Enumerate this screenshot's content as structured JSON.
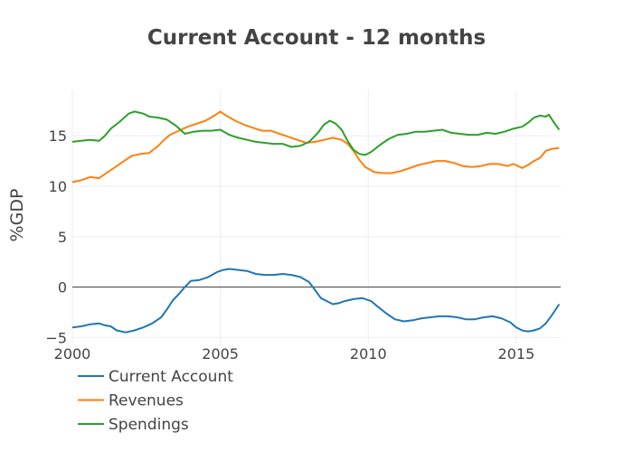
{
  "chart_data": {
    "type": "line",
    "title": "Current Account - 12 months",
    "xlabel": "",
    "ylabel": "%GDP",
    "xlim": [
      2000,
      2016.5
    ],
    "ylim": [
      -5.6,
      19.5
    ],
    "x_ticks": [
      "2000",
      "2005",
      "2010",
      "2015"
    ],
    "y_ticks": [
      "−5",
      "0",
      "5",
      "10",
      "15"
    ],
    "grid": true,
    "legend_position": "bottom-left",
    "series": [
      {
        "name": "Current Account",
        "color": "#1f77b4",
        "points": [
          [
            2000.0,
            -4.0
          ],
          [
            2000.3,
            -3.9
          ],
          [
            2000.6,
            -3.7
          ],
          [
            2000.9,
            -3.6
          ],
          [
            2001.1,
            -3.8
          ],
          [
            2001.3,
            -3.9
          ],
          [
            2001.5,
            -4.3
          ],
          [
            2001.8,
            -4.5
          ],
          [
            2002.1,
            -4.3
          ],
          [
            2002.4,
            -4.0
          ],
          [
            2002.7,
            -3.6
          ],
          [
            2003.0,
            -3.0
          ],
          [
            2003.2,
            -2.2
          ],
          [
            2003.4,
            -1.3
          ],
          [
            2003.6,
            -0.7
          ],
          [
            2003.8,
            0.0
          ],
          [
            2004.0,
            0.6
          ],
          [
            2004.3,
            0.7
          ],
          [
            2004.6,
            1.0
          ],
          [
            2004.9,
            1.5
          ],
          [
            2005.1,
            1.7
          ],
          [
            2005.3,
            1.8
          ],
          [
            2005.6,
            1.7
          ],
          [
            2005.9,
            1.6
          ],
          [
            2006.2,
            1.3
          ],
          [
            2006.5,
            1.2
          ],
          [
            2006.8,
            1.2
          ],
          [
            2007.1,
            1.3
          ],
          [
            2007.4,
            1.2
          ],
          [
            2007.7,
            1.0
          ],
          [
            2008.0,
            0.5
          ],
          [
            2008.2,
            -0.3
          ],
          [
            2008.4,
            -1.1
          ],
          [
            2008.6,
            -1.4
          ],
          [
            2008.8,
            -1.7
          ],
          [
            2009.0,
            -1.6
          ],
          [
            2009.2,
            -1.4
          ],
          [
            2009.5,
            -1.2
          ],
          [
            2009.8,
            -1.1
          ],
          [
            2010.1,
            -1.4
          ],
          [
            2010.3,
            -1.9
          ],
          [
            2010.6,
            -2.6
          ],
          [
            2010.9,
            -3.2
          ],
          [
            2011.2,
            -3.4
          ],
          [
            2011.5,
            -3.3
          ],
          [
            2011.8,
            -3.1
          ],
          [
            2012.1,
            -3.0
          ],
          [
            2012.4,
            -2.9
          ],
          [
            2012.7,
            -2.9
          ],
          [
            2013.0,
            -3.0
          ],
          [
            2013.3,
            -3.2
          ],
          [
            2013.6,
            -3.2
          ],
          [
            2013.9,
            -3.0
          ],
          [
            2014.2,
            -2.9
          ],
          [
            2014.5,
            -3.1
          ],
          [
            2014.8,
            -3.5
          ],
          [
            2015.0,
            -4.0
          ],
          [
            2015.2,
            -4.3
          ],
          [
            2015.4,
            -4.4
          ],
          [
            2015.6,
            -4.3
          ],
          [
            2015.8,
            -4.1
          ],
          [
            2016.0,
            -3.6
          ],
          [
            2016.2,
            -2.8
          ],
          [
            2016.45,
            -1.7
          ]
        ]
      },
      {
        "name": "Revenues",
        "color": "#ff7f0e",
        "points": [
          [
            2000.0,
            10.4
          ],
          [
            2000.3,
            10.6
          ],
          [
            2000.6,
            10.9
          ],
          [
            2000.9,
            10.8
          ],
          [
            2001.1,
            11.2
          ],
          [
            2001.4,
            11.8
          ],
          [
            2001.7,
            12.4
          ],
          [
            2002.0,
            13.0
          ],
          [
            2002.3,
            13.2
          ],
          [
            2002.6,
            13.3
          ],
          [
            2002.9,
            14.0
          ],
          [
            2003.1,
            14.6
          ],
          [
            2003.3,
            15.1
          ],
          [
            2003.6,
            15.5
          ],
          [
            2003.9,
            15.9
          ],
          [
            2004.2,
            16.2
          ],
          [
            2004.5,
            16.5
          ],
          [
            2004.8,
            17.0
          ],
          [
            2005.0,
            17.4
          ],
          [
            2005.2,
            17.0
          ],
          [
            2005.5,
            16.5
          ],
          [
            2005.8,
            16.1
          ],
          [
            2006.1,
            15.8
          ],
          [
            2006.4,
            15.5
          ],
          [
            2006.7,
            15.5
          ],
          [
            2007.0,
            15.2
          ],
          [
            2007.3,
            14.9
          ],
          [
            2007.6,
            14.6
          ],
          [
            2007.9,
            14.3
          ],
          [
            2008.2,
            14.4
          ],
          [
            2008.5,
            14.6
          ],
          [
            2008.8,
            14.8
          ],
          [
            2009.1,
            14.6
          ],
          [
            2009.3,
            14.2
          ],
          [
            2009.5,
            13.5
          ],
          [
            2009.7,
            12.6
          ],
          [
            2009.9,
            11.9
          ],
          [
            2010.2,
            11.4
          ],
          [
            2010.5,
            11.3
          ],
          [
            2010.8,
            11.3
          ],
          [
            2011.1,
            11.5
          ],
          [
            2011.4,
            11.8
          ],
          [
            2011.7,
            12.1
          ],
          [
            2012.0,
            12.3
          ],
          [
            2012.3,
            12.5
          ],
          [
            2012.6,
            12.5
          ],
          [
            2012.9,
            12.3
          ],
          [
            2013.2,
            12.0
          ],
          [
            2013.5,
            11.9
          ],
          [
            2013.8,
            12.0
          ],
          [
            2014.1,
            12.2
          ],
          [
            2014.4,
            12.2
          ],
          [
            2014.7,
            12.0
          ],
          [
            2014.9,
            12.2
          ],
          [
            2015.2,
            11.8
          ],
          [
            2015.4,
            12.1
          ],
          [
            2015.6,
            12.5
          ],
          [
            2015.8,
            12.8
          ],
          [
            2016.0,
            13.5
          ],
          [
            2016.2,
            13.7
          ],
          [
            2016.45,
            13.8
          ]
        ]
      },
      {
        "name": "Spendings",
        "color": "#2ca02c",
        "points": [
          [
            2000.0,
            14.4
          ],
          [
            2000.3,
            14.5
          ],
          [
            2000.6,
            14.6
          ],
          [
            2000.9,
            14.5
          ],
          [
            2001.1,
            15.0
          ],
          [
            2001.3,
            15.7
          ],
          [
            2001.6,
            16.4
          ],
          [
            2001.9,
            17.2
          ],
          [
            2002.1,
            17.4
          ],
          [
            2002.4,
            17.2
          ],
          [
            2002.6,
            16.9
          ],
          [
            2002.9,
            16.8
          ],
          [
            2003.2,
            16.6
          ],
          [
            2003.5,
            16.0
          ],
          [
            2003.8,
            15.2
          ],
          [
            2004.1,
            15.4
          ],
          [
            2004.4,
            15.5
          ],
          [
            2004.7,
            15.5
          ],
          [
            2005.0,
            15.6
          ],
          [
            2005.3,
            15.1
          ],
          [
            2005.6,
            14.8
          ],
          [
            2005.9,
            14.6
          ],
          [
            2006.2,
            14.4
          ],
          [
            2006.5,
            14.3
          ],
          [
            2006.8,
            14.2
          ],
          [
            2007.1,
            14.2
          ],
          [
            2007.4,
            13.9
          ],
          [
            2007.7,
            14.0
          ],
          [
            2008.0,
            14.4
          ],
          [
            2008.3,
            15.3
          ],
          [
            2008.5,
            16.1
          ],
          [
            2008.7,
            16.5
          ],
          [
            2008.9,
            16.2
          ],
          [
            2009.1,
            15.6
          ],
          [
            2009.3,
            14.5
          ],
          [
            2009.5,
            13.6
          ],
          [
            2009.7,
            13.2
          ],
          [
            2009.9,
            13.1
          ],
          [
            2010.1,
            13.4
          ],
          [
            2010.4,
            14.1
          ],
          [
            2010.7,
            14.7
          ],
          [
            2011.0,
            15.1
          ],
          [
            2011.3,
            15.2
          ],
          [
            2011.6,
            15.4
          ],
          [
            2011.9,
            15.4
          ],
          [
            2012.2,
            15.5
          ],
          [
            2012.5,
            15.6
          ],
          [
            2012.8,
            15.3
          ],
          [
            2013.1,
            15.2
          ],
          [
            2013.4,
            15.1
          ],
          [
            2013.7,
            15.1
          ],
          [
            2014.0,
            15.3
          ],
          [
            2014.3,
            15.2
          ],
          [
            2014.6,
            15.4
          ],
          [
            2014.9,
            15.7
          ],
          [
            2015.2,
            15.9
          ],
          [
            2015.4,
            16.3
          ],
          [
            2015.6,
            16.8
          ],
          [
            2015.8,
            17.0
          ],
          [
            2016.0,
            16.9
          ],
          [
            2016.1,
            17.1
          ],
          [
            2016.3,
            16.2
          ],
          [
            2016.45,
            15.6
          ]
        ]
      }
    ]
  }
}
